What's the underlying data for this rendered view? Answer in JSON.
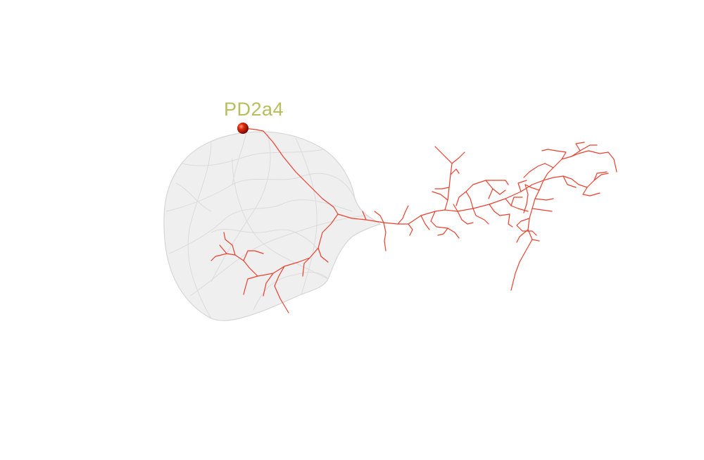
{
  "scene": {
    "neuron_label": "PD2a4",
    "colors": {
      "background": "#ffffff",
      "label": "#b8bd5e",
      "skeleton": "#e8412f",
      "soma": "#c0140a",
      "mesh_fill": "#ececec",
      "mesh_edge": "#d6d6d6"
    }
  }
}
